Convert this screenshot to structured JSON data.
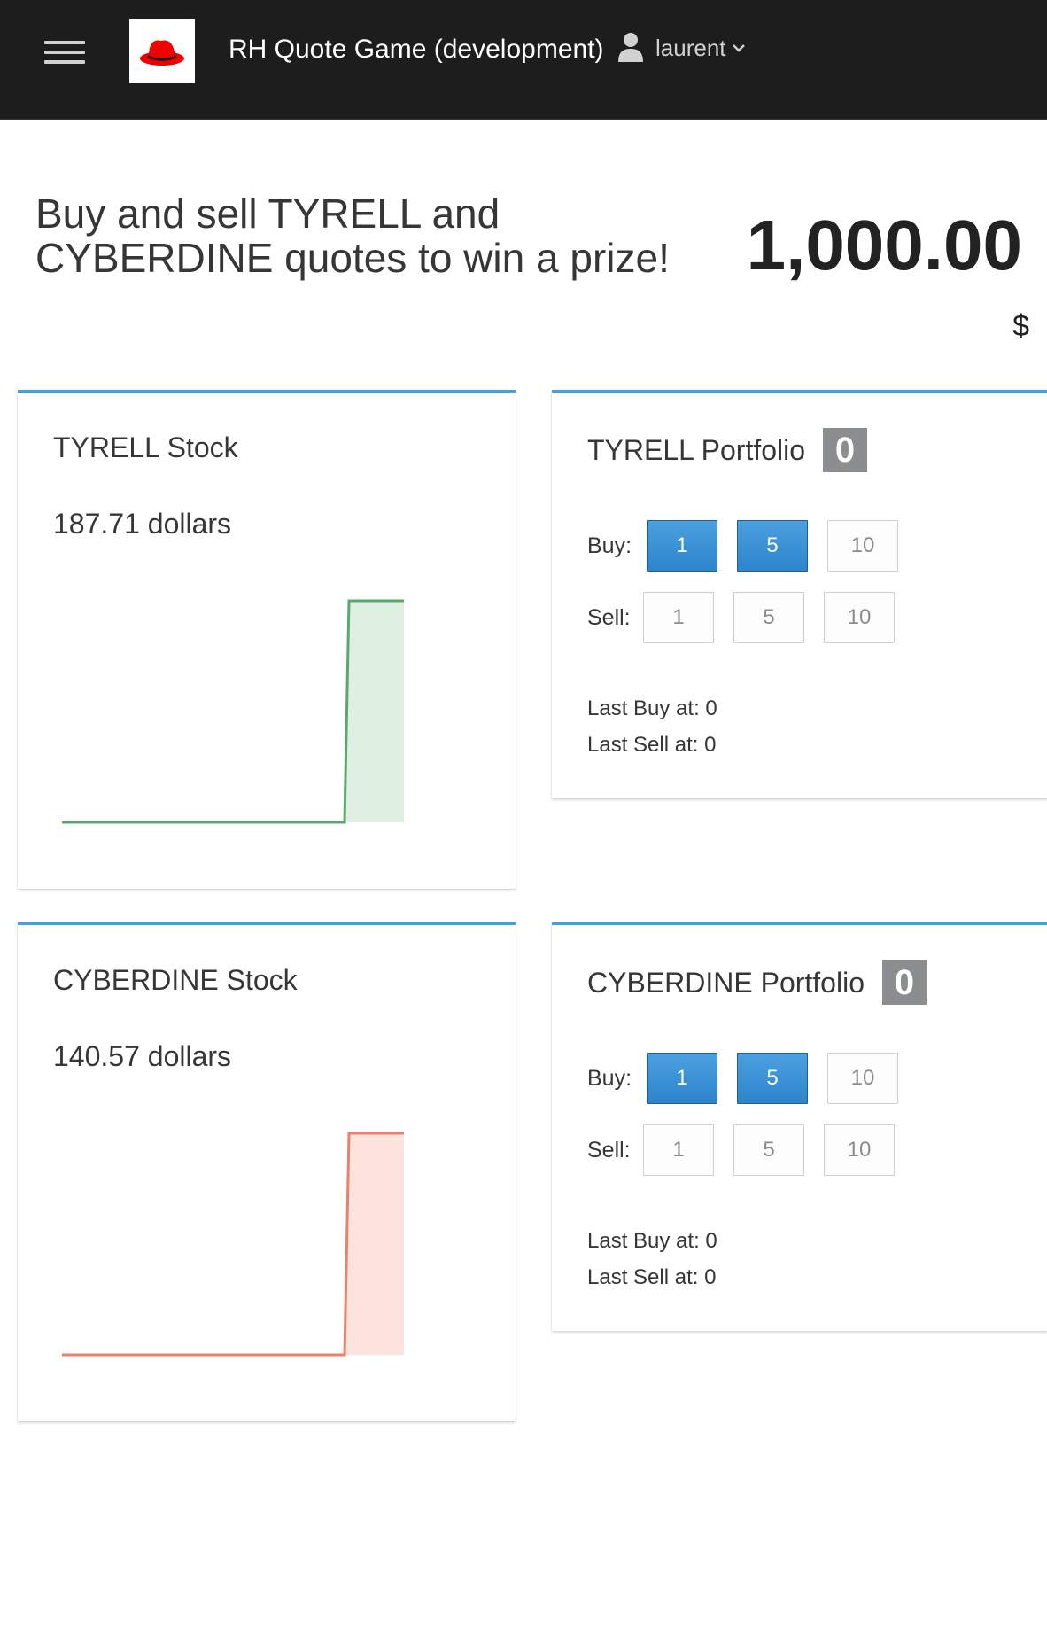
{
  "header": {
    "app_title": "RH Quote Game (development)",
    "user_name": "laurent",
    "logo": "redhat-fedora-logo",
    "menu_icon": "hamburger-icon"
  },
  "intro": {
    "headline": "Buy and sell TYRELL and CYBERDINE quotes to win a prize!",
    "balance": "1,000.00",
    "currency": "$"
  },
  "stocks": [
    {
      "title": "TYRELL Stock",
      "price": "187.71 dollars",
      "color": "#5aa86e",
      "fill": "#dff0e2",
      "series": [
        0,
        0,
        0,
        0,
        0,
        0,
        0,
        0,
        0,
        187.71,
        187.71
      ]
    },
    {
      "title": "CYBERDINE Stock",
      "price": "140.57 dollars",
      "color": "#e8826c",
      "fill": "#fde3de",
      "series": [
        0,
        0,
        0,
        0,
        0,
        0,
        0,
        0,
        0,
        140.57,
        140.57
      ]
    }
  ],
  "portfolios": [
    {
      "title": "TYRELL Portfolio",
      "count": "0",
      "buy_label": "Buy:",
      "sell_label": "Sell:",
      "buy_options": [
        "1",
        "5",
        "10"
      ],
      "sell_options": [
        "1",
        "5",
        "10"
      ],
      "last_buy": "Last Buy at: 0",
      "last_sell": "Last Sell at: 0"
    },
    {
      "title": "CYBERDINE Portfolio",
      "count": "0",
      "buy_label": "Buy:",
      "sell_label": "Sell:",
      "buy_options": [
        "1",
        "5",
        "10"
      ],
      "sell_options": [
        "1",
        "5",
        "10"
      ],
      "last_buy": "Last Buy at: 0",
      "last_sell": "Last Sell at: 0"
    }
  ],
  "colors": {
    "accent": "#39a5dc",
    "navbar": "#1d1d1d",
    "primary_button": "#2e84cc"
  }
}
